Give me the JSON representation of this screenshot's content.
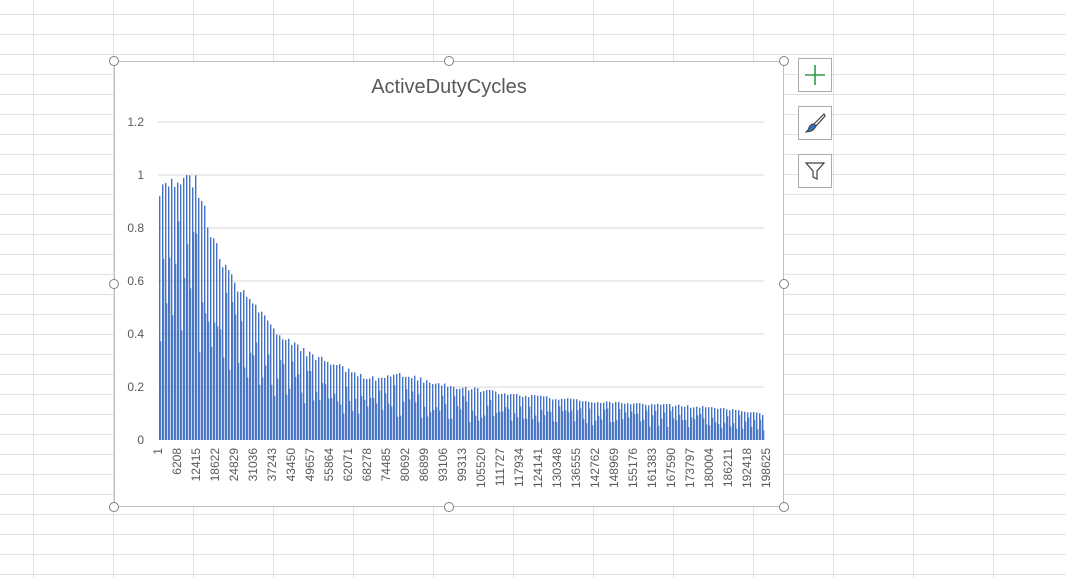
{
  "chart_data": {
    "type": "bar",
    "title": "ActiveDutyCycles",
    "xlabel": "",
    "ylabel": "",
    "ylim": [
      0,
      1.2
    ],
    "yticks": [
      "0",
      "0.2",
      "0.4",
      "0.6",
      "0.8",
      "1",
      "1.2"
    ],
    "x_tick_labels": [
      "1",
      "6208",
      "12415",
      "18622",
      "24829",
      "31036",
      "37243",
      "43450",
      "49657",
      "55864",
      "62071",
      "68278",
      "74485",
      "80692",
      "86899",
      "93106",
      "99313",
      "105520",
      "111727",
      "117934",
      "124141",
      "130348",
      "136555",
      "142762",
      "148969",
      "155176",
      "161383",
      "167590",
      "173797",
      "180004",
      "186211",
      "192418",
      "198625"
    ],
    "grid": "horizontal",
    "legend": "none",
    "series": [
      {
        "color": "#4472c4",
        "envelope_x": [
          1,
          12415,
          18622,
          24829,
          31036,
          37243,
          43450,
          49657,
          55864,
          62071,
          68278,
          74485,
          80692,
          86899,
          93106,
          105520,
          117934,
          130348,
          142762,
          155176,
          167590,
          180004,
          192418,
          204000
        ],
        "envelope_y": [
          1.0,
          1.0,
          0.77,
          0.62,
          0.53,
          0.45,
          0.39,
          0.34,
          0.31,
          0.28,
          0.25,
          0.24,
          0.26,
          0.24,
          0.22,
          0.2,
          0.18,
          0.165,
          0.155,
          0.145,
          0.14,
          0.13,
          0.12,
          0.1
        ]
      }
    ]
  },
  "side_buttons": {
    "elements": "plus-icon",
    "styles": "brush-icon",
    "filters": "funnel-icon"
  },
  "colors": {
    "bar": "#4472c4",
    "gridline": "#d9d9d9",
    "sheet_grid": "#e1e1e1",
    "text": "#595959",
    "plus_icon": "#2e9a47"
  }
}
